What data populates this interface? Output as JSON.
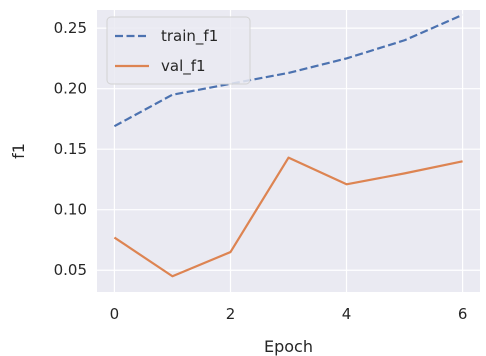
{
  "chart_data": {
    "type": "line",
    "title": "",
    "xlabel": "Epoch",
    "ylabel": "f1",
    "x": [
      0,
      1,
      2,
      3,
      4,
      5,
      6
    ],
    "xlim": [
      -0.3,
      6.3
    ],
    "ylim": [
      0.032,
      0.265
    ],
    "x_ticks": [
      0,
      2,
      4,
      6
    ],
    "x_tick_labels": [
      "0",
      "2",
      "4",
      "6"
    ],
    "y_ticks": [
      0.05,
      0.1,
      0.15,
      0.2,
      0.25
    ],
    "y_tick_labels": [
      "0.05",
      "0.10",
      "0.15",
      "0.20",
      "0.25"
    ],
    "grid": true,
    "legend_position": "top-left",
    "background_color": "#eaeaf2",
    "grid_color": "#ffffff",
    "series": [
      {
        "name": "train_f1",
        "values": [
          0.169,
          0.195,
          0.204,
          0.213,
          0.225,
          0.24,
          0.261
        ],
        "color": "#4c72b0",
        "line_style": "dashed"
      },
      {
        "name": "val_f1",
        "values": [
          0.077,
          0.045,
          0.065,
          0.143,
          0.121,
          0.13,
          0.14
        ],
        "color": "#dd8452",
        "line_style": "solid"
      }
    ]
  }
}
